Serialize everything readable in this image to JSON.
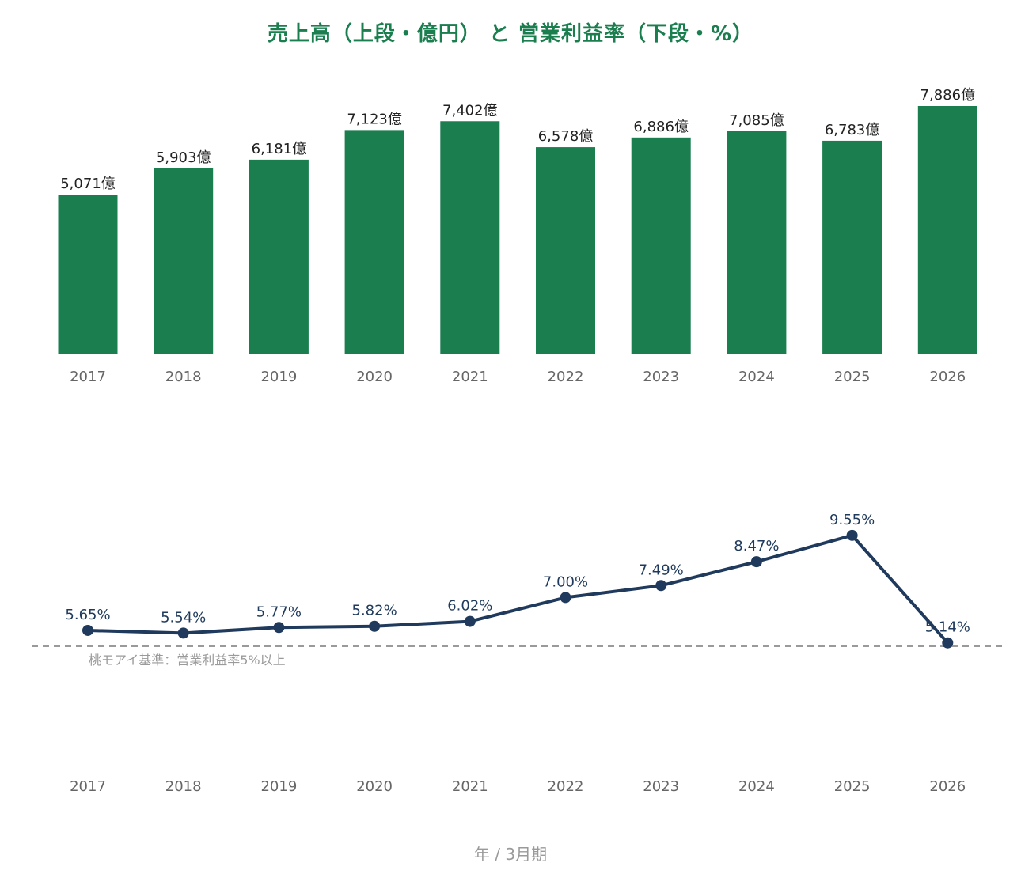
{
  "chart_data": [
    {
      "type": "bar",
      "title": "売上高（上段・億円） と 営業利益率（下段・%）",
      "categories": [
        "2017",
        "2018",
        "2019",
        "2020",
        "2021",
        "2022",
        "2023",
        "2024",
        "2025",
        "2026"
      ],
      "values": [
        5071,
        5903,
        6181,
        7123,
        7402,
        6578,
        6886,
        7085,
        6783,
        7886
      ],
      "data_labels": [
        "5,071億",
        "5,903億",
        "6,181億",
        "7,123億",
        "7,402億",
        "6,578億",
        "6,886億",
        "7,085億",
        "6,783億",
        "7,886億"
      ],
      "ylim": [
        0,
        7886
      ],
      "color": "#1b7e4f",
      "grid": false
    },
    {
      "type": "line",
      "categories": [
        "2017",
        "2018",
        "2019",
        "2020",
        "2021",
        "2022",
        "2023",
        "2024",
        "2025",
        "2026"
      ],
      "values": [
        5.65,
        5.54,
        5.77,
        5.82,
        6.02,
        7.0,
        7.49,
        8.47,
        9.55,
        5.14
      ],
      "data_labels": [
        "5.65%",
        "5.54%",
        "5.77%",
        "5.82%",
        "6.02%",
        "7.00%",
        "7.49%",
        "8.47%",
        "9.55%",
        "5.14%"
      ],
      "reference_line": {
        "value": 5,
        "label": "桃モアイ基準：営業利益率5%以上",
        "color": "#9a9a9a",
        "style": "dashed"
      },
      "color": "#1f3a5c",
      "xlabel": "年 / 3月期",
      "grid": false
    }
  ]
}
